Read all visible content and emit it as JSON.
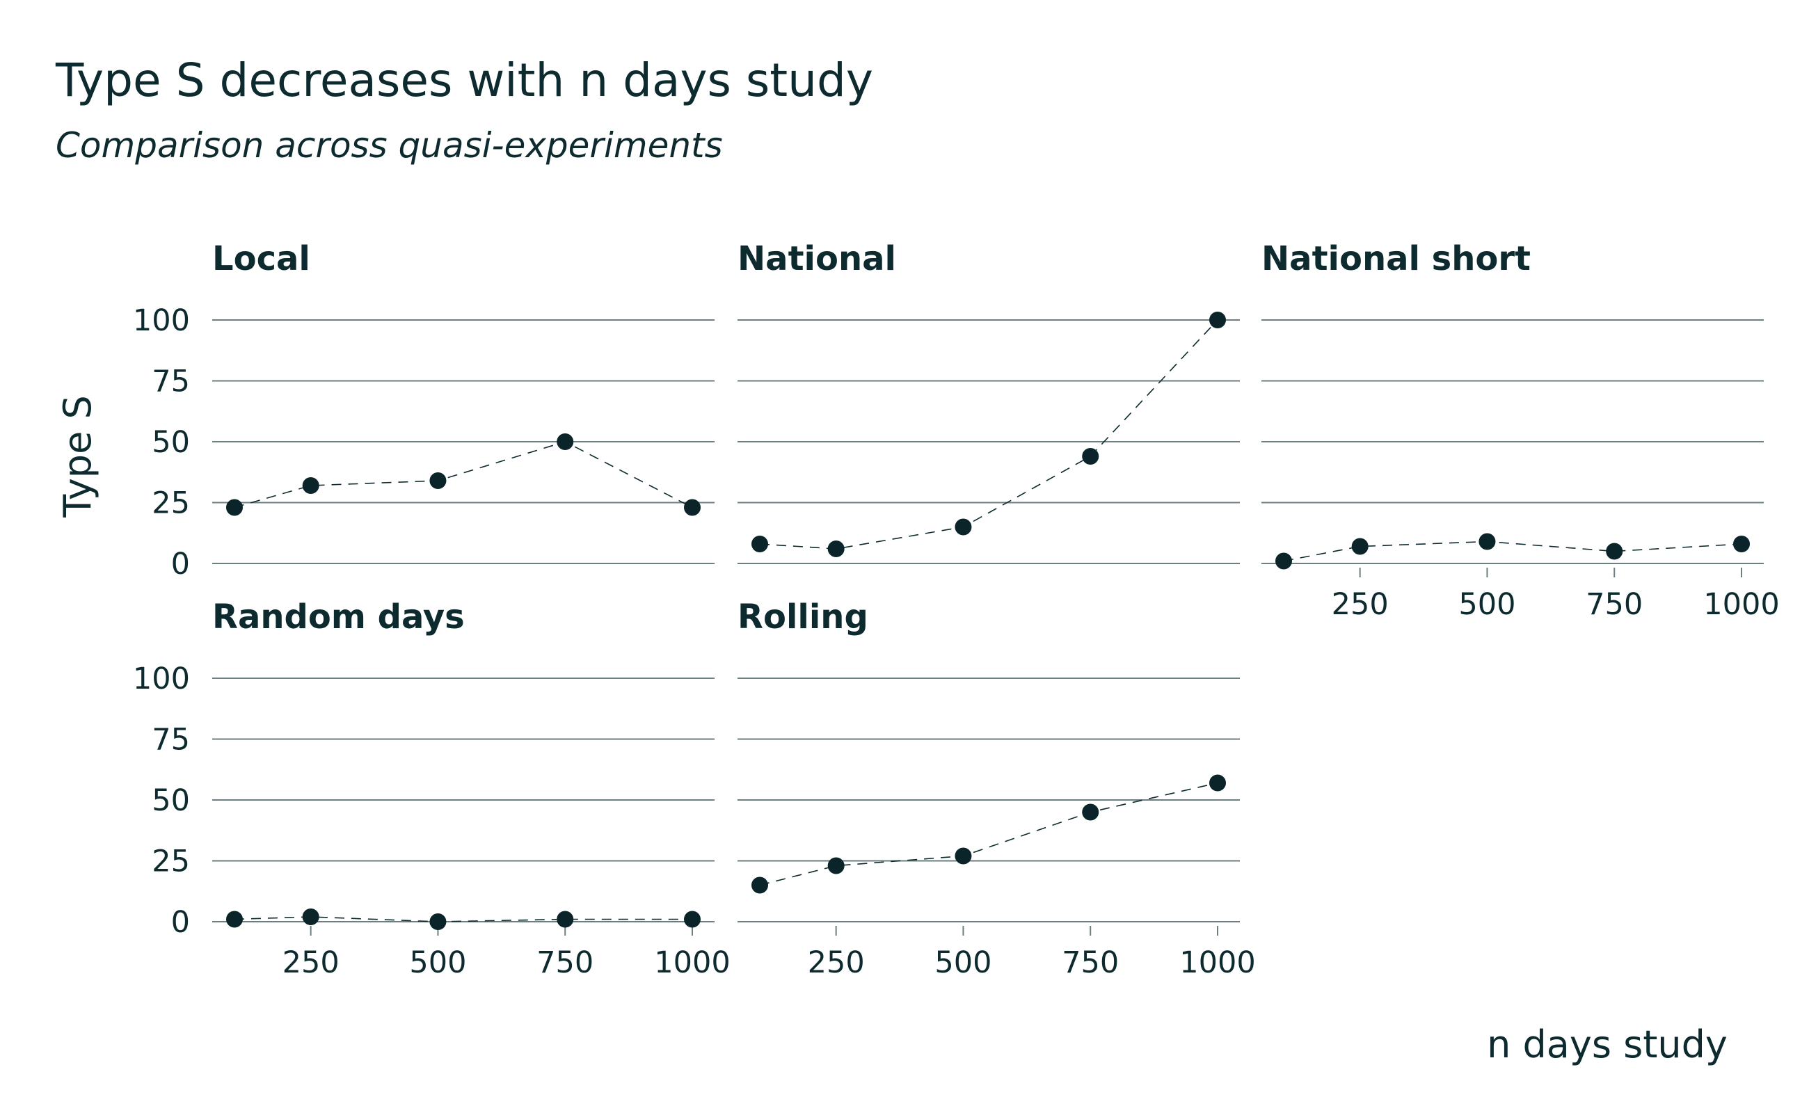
{
  "title": "Type S decreases with n days study",
  "subtitle": "Comparison across quasi-experiments",
  "colors": {
    "text": "#0d2a2e",
    "grid": "#6b7f80",
    "point": "#0a2429"
  },
  "chart_data": {
    "type": "line",
    "facet_wrap": true,
    "xlabel": "n days study",
    "ylabel": "Type S",
    "ylim": [
      0,
      100
    ],
    "y_ticks": [
      0,
      25,
      50,
      75,
      100
    ],
    "x_ticks": [
      250,
      500,
      750,
      1000
    ],
    "grid": true,
    "panels": [
      {
        "name": "Local",
        "points": [
          {
            "x": 100,
            "y": 23
          },
          {
            "x": 250,
            "y": 32
          },
          {
            "x": 500,
            "y": 34
          },
          {
            "x": 750,
            "y": 50
          },
          {
            "x": 1000,
            "y": 23
          }
        ]
      },
      {
        "name": "National",
        "points": [
          {
            "x": 100,
            "y": 8
          },
          {
            "x": 250,
            "y": 6
          },
          {
            "x": 500,
            "y": 15
          },
          {
            "x": 750,
            "y": 44
          },
          {
            "x": 1000,
            "y": 100
          }
        ]
      },
      {
        "name": "National short",
        "points": [
          {
            "x": 100,
            "y": 1
          },
          {
            "x": 250,
            "y": 7
          },
          {
            "x": 500,
            "y": 9
          },
          {
            "x": 750,
            "y": 5
          },
          {
            "x": 1000,
            "y": 8
          }
        ]
      },
      {
        "name": "Random days",
        "points": [
          {
            "x": 100,
            "y": 1
          },
          {
            "x": 250,
            "y": 2
          },
          {
            "x": 500,
            "y": 0
          },
          {
            "x": 750,
            "y": 1
          },
          {
            "x": 1000,
            "y": 1
          }
        ]
      },
      {
        "name": "Rolling",
        "points": [
          {
            "x": 100,
            "y": 15
          },
          {
            "x": 250,
            "y": 23
          },
          {
            "x": 500,
            "y": 27
          },
          {
            "x": 750,
            "y": 45
          },
          {
            "x": 1000,
            "y": 57
          }
        ]
      }
    ]
  }
}
